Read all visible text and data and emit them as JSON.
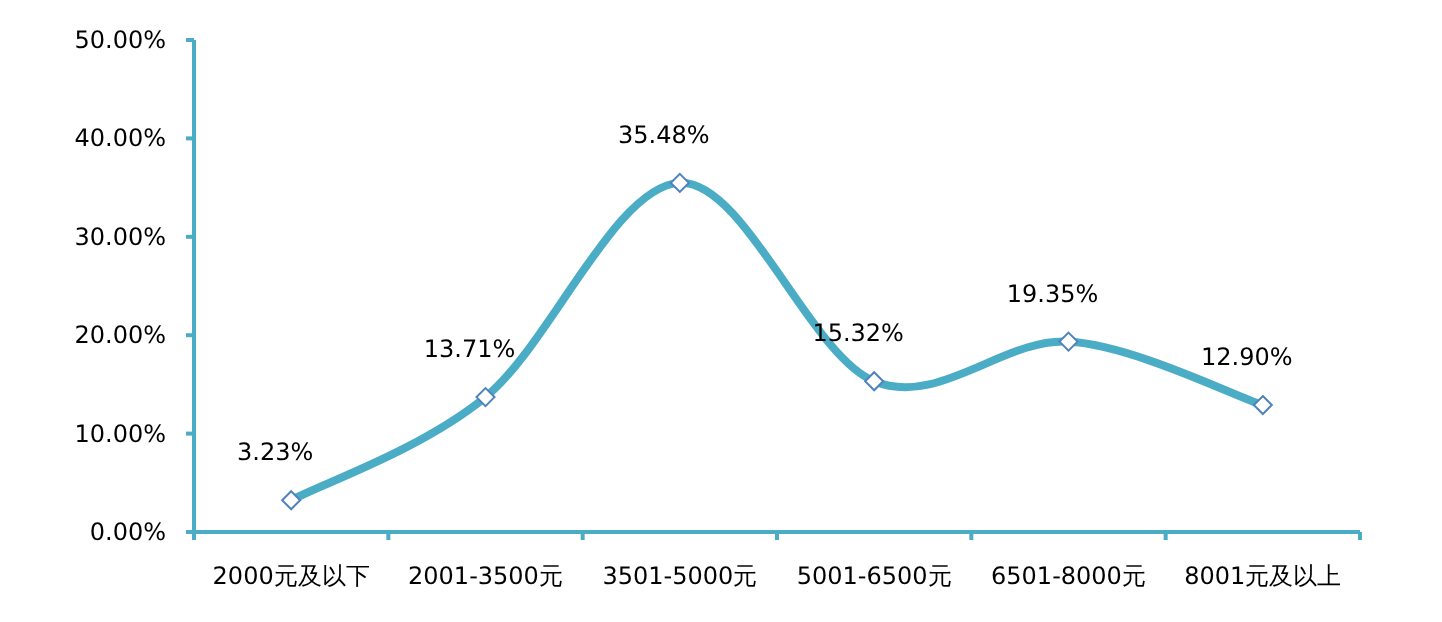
{
  "chart_data": {
    "type": "line",
    "categories": [
      "2000元及以下",
      "2001-3500元",
      "3501-5000元",
      "5001-6500元",
      "6501-8000元",
      "8001元及以上"
    ],
    "series": [
      {
        "color": "#4bacc6",
        "values": [
          3.23,
          13.71,
          35.48,
          15.32,
          19.35,
          12.9
        ],
        "value_labels": [
          "3.23%",
          "13.71%",
          "35.48%",
          "15.32%",
          "19.35%",
          "12.90%"
        ]
      }
    ],
    "ylim": [
      0,
      50
    ],
    "yticks": [
      {
        "value": 0,
        "label": "0.00%"
      },
      {
        "value": 10,
        "label": "10.00%"
      },
      {
        "value": 20,
        "label": "20.00%"
      },
      {
        "value": 30,
        "label": "30.00%"
      },
      {
        "value": 40,
        "label": "40.00%"
      },
      {
        "value": 50,
        "label": "50.00%"
      }
    ],
    "marker": "diamond",
    "grid": false
  }
}
